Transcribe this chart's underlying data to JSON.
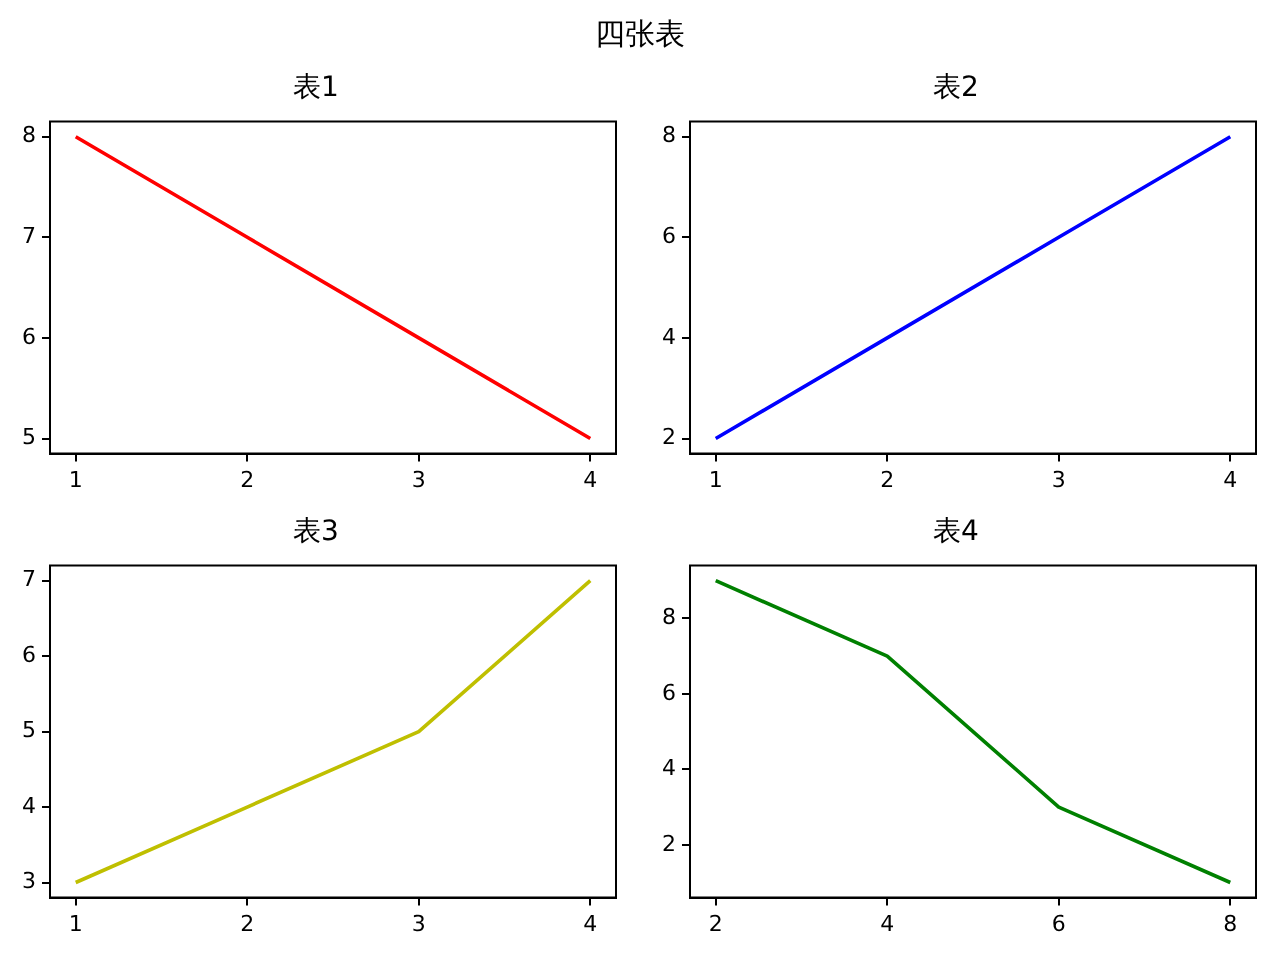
{
  "chart_data": [
    {
      "type": "line",
      "title": "表1",
      "annotations": [
        "四张表"
      ],
      "x": [
        1,
        2,
        3,
        4
      ],
      "series": [
        {
          "color": "#ff0000",
          "values": [
            8,
            7,
            6,
            5
          ]
        }
      ],
      "xlim": [
        0.85,
        4.15
      ],
      "xticks": [
        1,
        2,
        3,
        4
      ],
      "ylim": [
        4.85,
        8.15
      ],
      "yticks": [
        5,
        6,
        7,
        8
      ],
      "legend": false
    },
    {
      "type": "line",
      "title": "表2",
      "x": [
        1,
        2,
        3,
        4
      ],
      "series": [
        {
          "color": "#0000ff",
          "values": [
            2,
            4,
            6,
            8
          ]
        }
      ],
      "xlim": [
        0.85,
        4.15
      ],
      "xticks": [
        1,
        2,
        3,
        4
      ],
      "ylim": [
        1.7,
        8.3
      ],
      "yticks": [
        2,
        4,
        6,
        8
      ],
      "legend": false
    },
    {
      "type": "line",
      "title": "表3",
      "x": [
        1,
        2,
        3,
        4
      ],
      "series": [
        {
          "color": "#bfbf00",
          "values": [
            3,
            4,
            5,
            7
          ]
        }
      ],
      "xlim": [
        0.85,
        4.15
      ],
      "xticks": [
        1,
        2,
        3,
        4
      ],
      "ylim": [
        2.8,
        7.2
      ],
      "yticks": [
        3,
        4,
        5,
        6,
        7
      ],
      "legend": false
    },
    {
      "type": "line",
      "title": "表4",
      "x": [
        2,
        4,
        6,
        8
      ],
      "series": [
        {
          "color": "#008000",
          "values": [
            9,
            7,
            3,
            1
          ]
        }
      ],
      "xlim": [
        1.7,
        8.3
      ],
      "xticks": [
        2,
        4,
        6,
        8
      ],
      "ylim": [
        0.6,
        9.4
      ],
      "yticks": [
        2,
        4,
        6,
        8
      ],
      "legend": false
    }
  ]
}
